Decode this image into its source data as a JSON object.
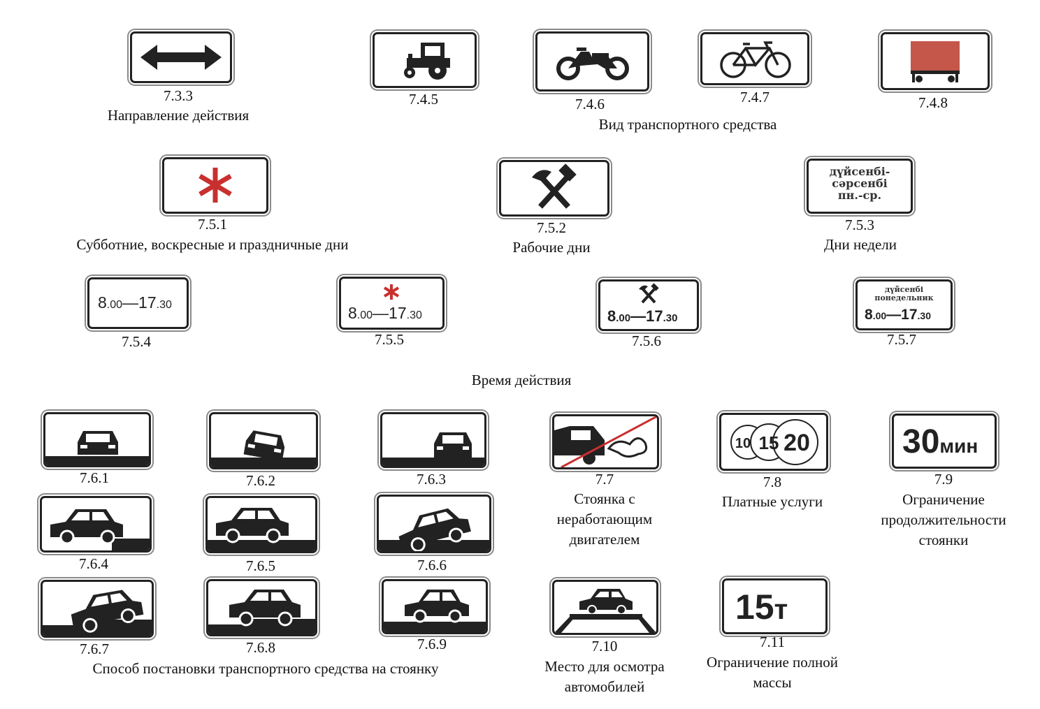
{
  "codes": {
    "c733": "7.3.3",
    "c745": "7.4.5",
    "c746": "7.4.6",
    "c747": "7.4.7",
    "c748": "7.4.8",
    "c751": "7.5.1",
    "c752": "7.5.2",
    "c753": "7.5.3",
    "c754": "7.5.4",
    "c755": "7.5.5",
    "c756": "7.5.6",
    "c757": "7.5.7",
    "c761": "7.6.1",
    "c762": "7.6.2",
    "c763": "7.6.3",
    "c77": "7.7",
    "c78": "7.8",
    "c79": "7.9",
    "c764": "7.6.4",
    "c765": "7.6.5",
    "c766": "7.6.6",
    "c767": "7.6.7",
    "c768": "7.6.8",
    "c769": "7.6.9",
    "c710": "7.10",
    "c711": "7.11"
  },
  "captions": {
    "direction": "Направление действия",
    "vehicle_type": "Вид транспортного средства",
    "weekends": "Субботние, воскресные и праздничные дни",
    "workdays": "Рабочие дни",
    "weekdays": "Дни недели",
    "time": "Время действия",
    "engine_off": "Стоянка с неработающим двигателем",
    "paid": "Платные услуги",
    "duration": "Ограничение продолжительности стоянки",
    "parking_method": "Способ постановки транспортного средства на стоянку",
    "inspection": "Место для осмотра автомобилей",
    "mass": "Ограничение полной массы"
  },
  "sign_text": {
    "day_lines": [
      "дүйсенбі-",
      "сәрсенбі",
      "пн.-ср."
    ],
    "time_range": "8.00—17.30",
    "time_start_main": "8",
    "time_start_small": ".00",
    "dash": "—",
    "time_end_main": "17",
    "time_end_small": ".30",
    "weekday_757_lines": [
      "дүйсенбі",
      "понедельник"
    ],
    "paid_values": [
      "10",
      "15",
      "20"
    ],
    "duration_number": "30",
    "duration_unit": "мин",
    "mass_number": "15",
    "mass_unit": "т"
  },
  "colors": {
    "red": "#c8302f",
    "truck_red": "#c4574a",
    "ink": "#222222"
  }
}
